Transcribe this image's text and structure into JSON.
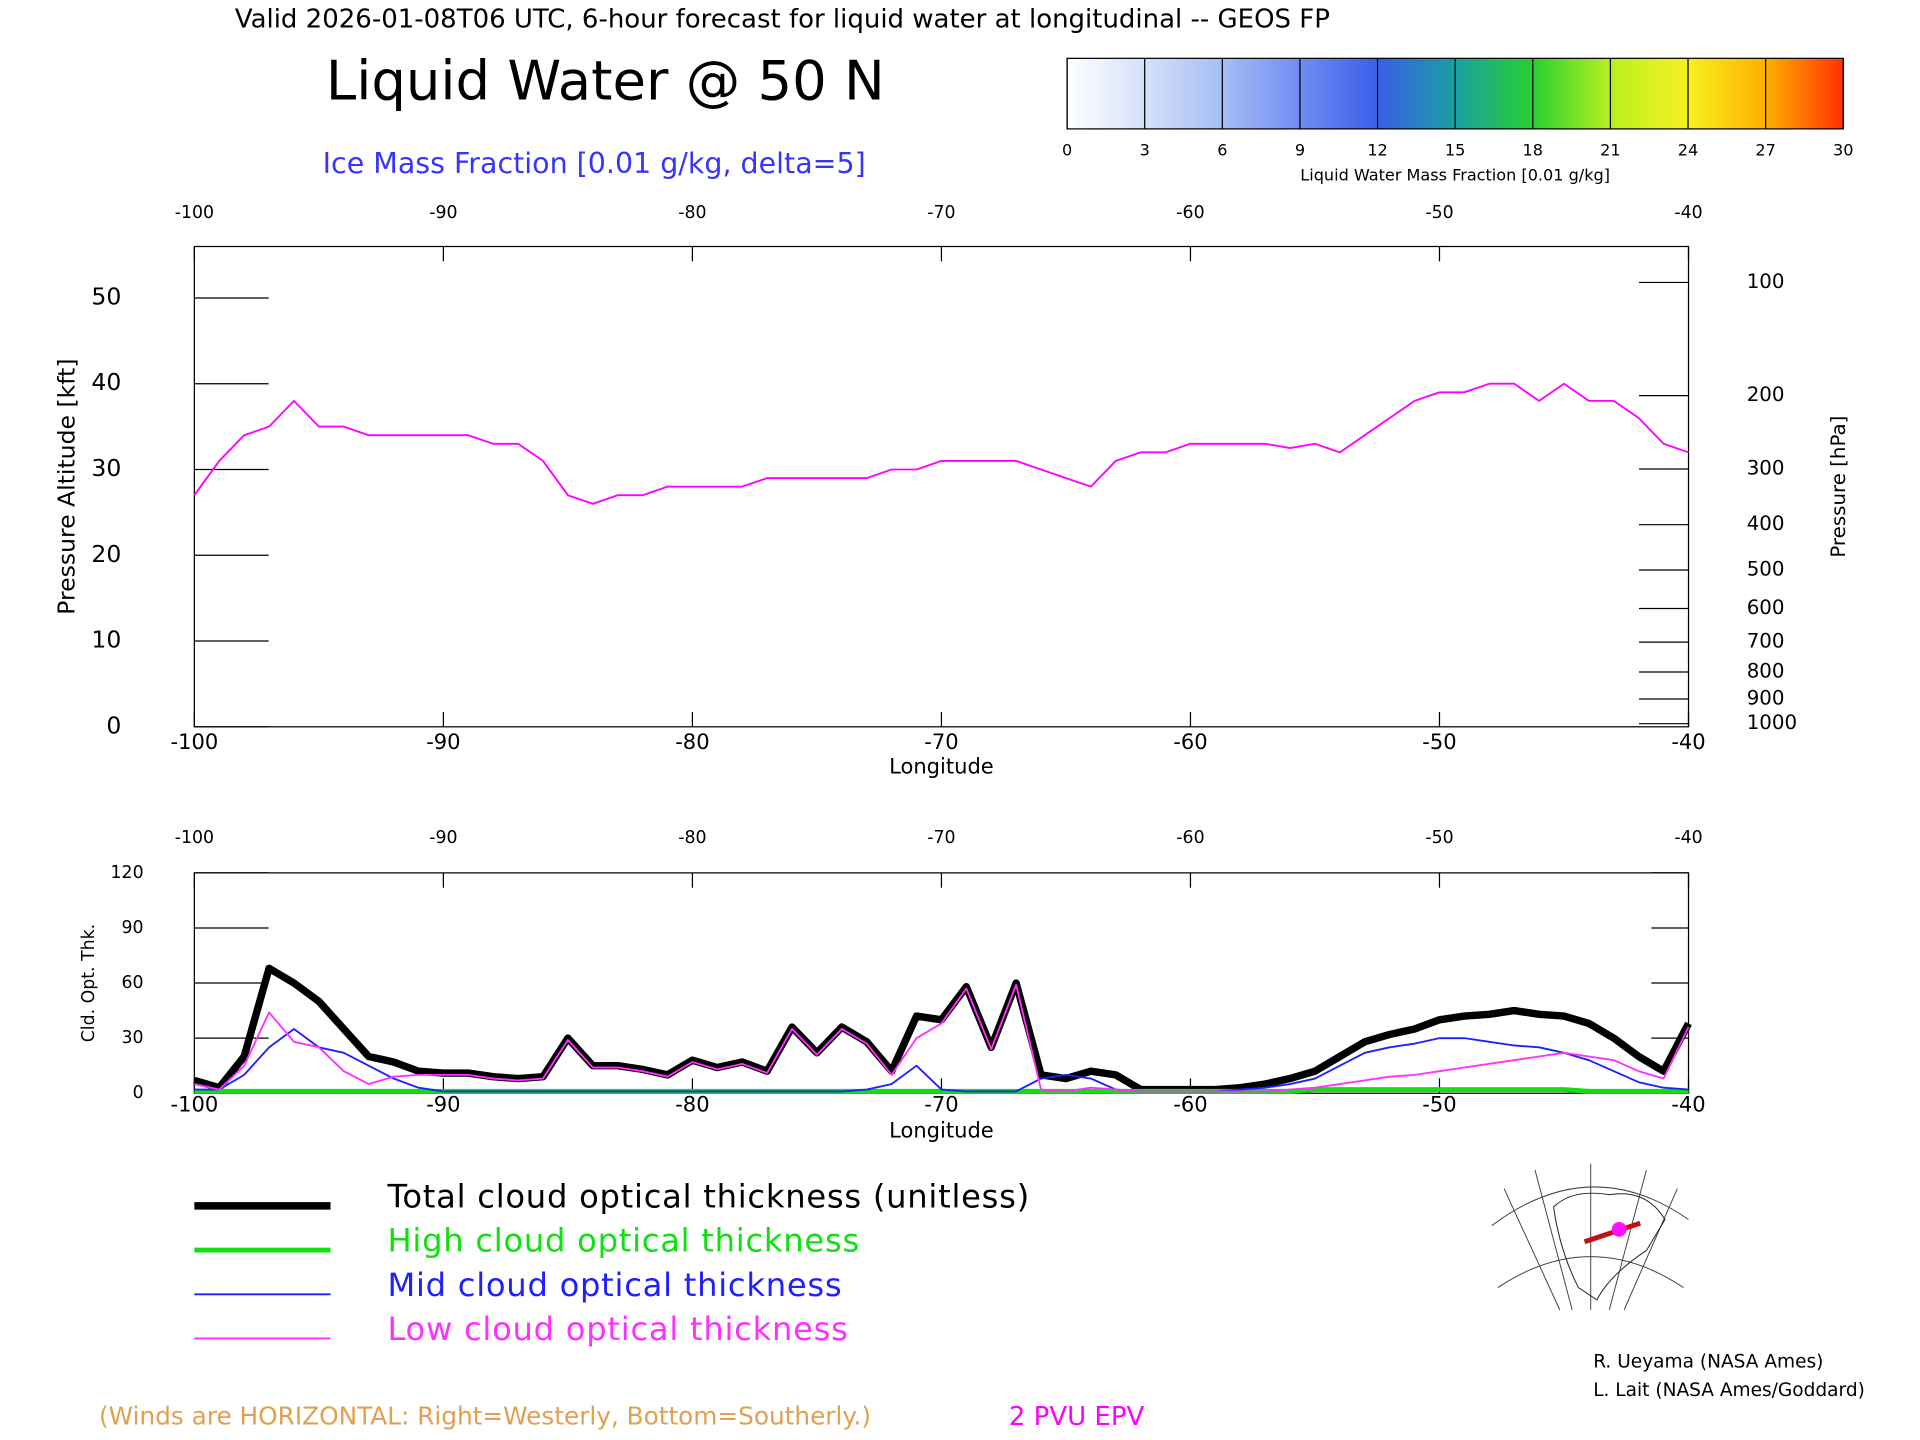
{
  "header": "Valid 2026-01-08T06 UTC, 6-hour forecast for liquid water at longitudinal -- GEOS FP",
  "footer": "(Winds are HORIZONTAL: Right=Westerly, Bottom=Southerly.)",
  "credits": [
    "R. Ueyama (NASA Ames)",
    "L. Lait (NASA Ames/Goddard)"
  ],
  "chart_data": [
    {
      "type": "line",
      "title": "Liquid Water @ 50 N",
      "subtitle": "Ice Mass Fraction [0.01 g/kg, delta=5]",
      "xlabel": "Longitude",
      "ylabel": "Pressure Altitude [kft]",
      "y2label": "Pressure [hPa]",
      "x": [
        -100,
        -99,
        -98,
        -97,
        -96,
        -95,
        -94,
        -93,
        -92,
        -91,
        -90,
        -89,
        -88,
        -87,
        -86,
        -85,
        -84,
        -83,
        -82,
        -81,
        -80,
        -79,
        -78,
        -77,
        -76,
        -75,
        -74,
        -73,
        -72,
        -71,
        -70,
        -69,
        -68,
        -67,
        -66,
        -65,
        -64,
        -63,
        -62,
        -61,
        -60,
        -59,
        -58,
        -57,
        -56,
        -55,
        -54,
        -53,
        -52,
        -51,
        -50,
        -49,
        -48,
        -47,
        -46,
        -45,
        -44,
        -43,
        -42,
        -41,
        -40
      ],
      "xlim": [
        -100,
        -40
      ],
      "xticks": [
        -100,
        -90,
        -80,
        -70,
        -60,
        -50,
        -40
      ],
      "ylim": [
        0,
        56
      ],
      "yticks": [
        0,
        10,
        20,
        30,
        40,
        50
      ],
      "y2scale": "pressure-altitude",
      "y2lim": [
        1013.25,
        78.6
      ],
      "y2ticks": [
        100,
        200,
        300,
        400,
        500,
        600,
        700,
        800,
        900,
        1000
      ],
      "series": [
        {
          "name": "2 PVU EPV",
          "color": "#ff00ff",
          "linewidth": 1.5,
          "values": [
            27,
            31,
            34,
            35,
            38,
            35,
            35,
            34,
            34,
            34,
            34,
            34,
            33,
            33,
            31,
            27,
            26,
            27,
            27,
            28,
            28,
            28,
            28,
            29,
            29,
            29,
            29,
            29,
            30,
            30,
            31,
            31,
            31,
            31,
            30,
            29,
            28,
            31,
            32,
            32,
            33,
            33,
            33,
            33,
            32.5,
            33,
            32,
            34,
            36,
            38,
            39,
            39,
            40,
            40,
            38,
            40,
            38,
            38,
            36,
            33,
            32
          ]
        }
      ]
    },
    {
      "type": "line",
      "xlabel": "Longitude",
      "ylabel": "Cld. Opt. Thk.",
      "legend": "below",
      "x": [
        -100,
        -99,
        -98,
        -97,
        -96,
        -95,
        -94,
        -93,
        -92,
        -91,
        -90,
        -89,
        -88,
        -87,
        -86,
        -85,
        -84,
        -83,
        -82,
        -81,
        -80,
        -79,
        -78,
        -77,
        -76,
        -75,
        -74,
        -73,
        -72,
        -71,
        -70,
        -69,
        -68,
        -67,
        -66,
        -65,
        -64,
        -63,
        -62,
        -61,
        -60,
        -59,
        -58,
        -57,
        -56,
        -55,
        -54,
        -53,
        -52,
        -51,
        -50,
        -49,
        -48,
        -47,
        -46,
        -45,
        -44,
        -43,
        -42,
        -41,
        -40
      ],
      "xlim": [
        -100,
        -40
      ],
      "xticks": [
        -100,
        -90,
        -80,
        -70,
        -60,
        -50,
        -40
      ],
      "ylim": [
        0,
        120
      ],
      "yticks": [
        0,
        30,
        60,
        90,
        120
      ],
      "series": [
        {
          "name": "Total cloud optical thickness (unitless)",
          "color": "#000000",
          "linewidth": 6,
          "values": [
            7,
            3,
            20,
            68,
            60,
            50,
            35,
            20,
            17,
            12,
            11,
            11,
            9,
            8,
            9,
            30,
            15,
            15,
            13,
            10,
            18,
            14,
            17,
            12,
            36,
            22,
            36,
            28,
            12,
            42,
            40,
            58,
            25,
            60,
            10,
            8,
            12,
            10,
            2,
            2,
            2,
            2,
            3,
            5,
            8,
            12,
            20,
            28,
            32,
            35,
            40,
            42,
            43,
            45,
            43,
            42,
            38,
            30,
            20,
            12,
            38
          ]
        },
        {
          "name": "High cloud optical thickness",
          "color": "#10e010",
          "linewidth": 4,
          "values": [
            1,
            1,
            1,
            1,
            1,
            1,
            1,
            1,
            1,
            1,
            1,
            1,
            1,
            1,
            1,
            1,
            1,
            1,
            1,
            1,
            1,
            1,
            1,
            1,
            1,
            1,
            1,
            1,
            1,
            1,
            1,
            1,
            1,
            1,
            1,
            1,
            1,
            1,
            1,
            1,
            1,
            1,
            1,
            1,
            1,
            2,
            2,
            2,
            2,
            2,
            2,
            2,
            2,
            2,
            2,
            2,
            1,
            1,
            1,
            1,
            1
          ]
        },
        {
          "name": "Mid cloud optical thickness",
          "color": "#2020ff",
          "linewidth": 1.5,
          "values": [
            2,
            2,
            10,
            25,
            35,
            25,
            22,
            15,
            8,
            3,
            1,
            1,
            1,
            1,
            1,
            1,
            1,
            1,
            1,
            1,
            1,
            1,
            1,
            1,
            1,
            1,
            1,
            2,
            5,
            15,
            2,
            1,
            1,
            1,
            8,
            10,
            8,
            2,
            1,
            1,
            1,
            1,
            2,
            3,
            5,
            8,
            15,
            22,
            25,
            27,
            30,
            30,
            28,
            26,
            25,
            22,
            18,
            12,
            6,
            3,
            2
          ]
        },
        {
          "name": "Low cloud optical thickness",
          "color": "#ff30ff",
          "linewidth": 1.5,
          "values": [
            5,
            2,
            15,
            44,
            28,
            25,
            12,
            5,
            9,
            10,
            10,
            10,
            8,
            7,
            8,
            29,
            14,
            14,
            12,
            9,
            17,
            13,
            16,
            11,
            35,
            21,
            35,
            27,
            10,
            30,
            38,
            57,
            24,
            59,
            2,
            1,
            3,
            2,
            1,
            1,
            1,
            1,
            1,
            1,
            2,
            3,
            5,
            7,
            9,
            10,
            12,
            14,
            16,
            18,
            20,
            22,
            20,
            18,
            12,
            8,
            36
          ]
        }
      ]
    },
    {
      "type": "colorbar",
      "label": "Liquid Water Mass Fraction [0.01 g/kg]",
      "xlim": [
        0,
        30
      ],
      "xticks": [
        0,
        3,
        6,
        9,
        12,
        15,
        18,
        21,
        24,
        27,
        30
      ],
      "colors": [
        "#ffffff",
        "#d4e0fb",
        "#a6bef6",
        "#6f8df1",
        "#3a5ee8",
        "#18a0a0",
        "#28d030",
        "#b8f020",
        "#f8f020",
        "#ffb000",
        "#ff3000"
      ]
    }
  ]
}
